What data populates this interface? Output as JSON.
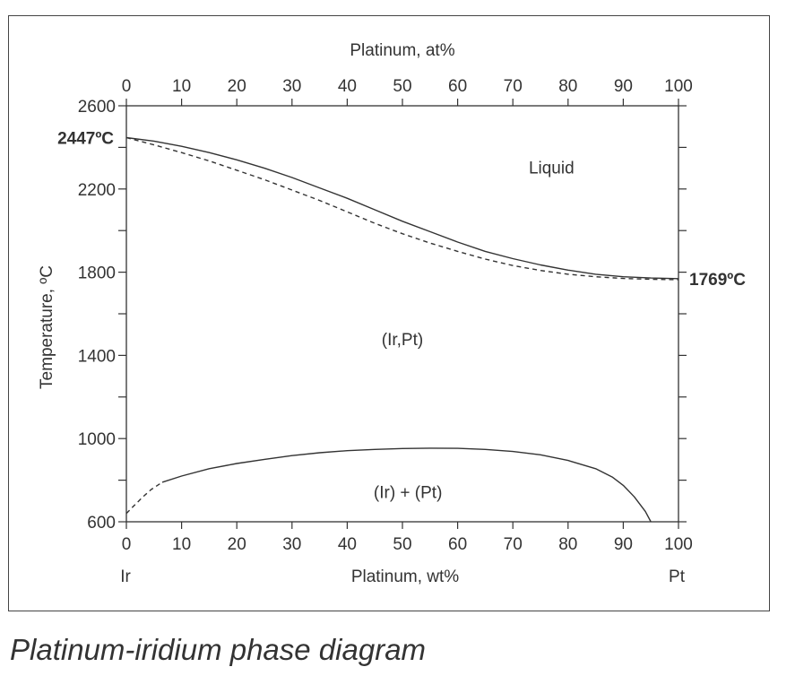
{
  "chart_data": {
    "type": "line",
    "xlabel_bottom": "Platinum, wt%",
    "xlabel_top": "Platinum, at%",
    "ylabel": "Temperature, ºC",
    "xlim": [
      0,
      100
    ],
    "ylim": [
      600,
      2600
    ],
    "x_ticks": [
      "0",
      "10",
      "20",
      "30",
      "40",
      "50",
      "60",
      "70",
      "80",
      "90",
      "100"
    ],
    "y_ticks": [
      "600",
      "1000",
      "1400",
      "1800",
      "2200",
      "2600"
    ],
    "y_minor_step": 200,
    "x_end_labels": {
      "left": "Ir",
      "right": "Pt"
    },
    "point_labels": [
      {
        "text": "2447ºC",
        "x": 0,
        "y": 2447,
        "side": "left"
      },
      {
        "text": "1769ºC",
        "x": 100,
        "y": 1769,
        "side": "right"
      }
    ],
    "region_labels": [
      {
        "text": "Liquid",
        "x": 77,
        "y": 2305
      },
      {
        "text": "(Ir,Pt)",
        "x": 50,
        "y": 1480
      },
      {
        "text": "(Ir) + (Pt)",
        "x": 51,
        "y": 745
      }
    ],
    "series": [
      {
        "style": "solid",
        "points": [
          [
            0,
            2447
          ],
          [
            5,
            2430
          ],
          [
            10,
            2405
          ],
          [
            15,
            2375
          ],
          [
            20,
            2340
          ],
          [
            25,
            2300
          ],
          [
            30,
            2255
          ],
          [
            35,
            2205
          ],
          [
            40,
            2155
          ],
          [
            45,
            2100
          ],
          [
            50,
            2045
          ],
          [
            55,
            1995
          ],
          [
            60,
            1945
          ],
          [
            65,
            1900
          ],
          [
            70,
            1865
          ],
          [
            75,
            1835
          ],
          [
            80,
            1810
          ],
          [
            85,
            1790
          ],
          [
            90,
            1778
          ],
          [
            95,
            1772
          ],
          [
            100,
            1769
          ]
        ]
      },
      {
        "style": "dashed",
        "points": [
          [
            0,
            2447
          ],
          [
            5,
            2412
          ],
          [
            10,
            2375
          ],
          [
            15,
            2335
          ],
          [
            20,
            2290
          ],
          [
            25,
            2245
          ],
          [
            30,
            2195
          ],
          [
            35,
            2145
          ],
          [
            40,
            2090
          ],
          [
            45,
            2035
          ],
          [
            50,
            1985
          ],
          [
            55,
            1940
          ],
          [
            60,
            1900
          ],
          [
            65,
            1863
          ],
          [
            70,
            1832
          ],
          [
            75,
            1808
          ],
          [
            80,
            1790
          ],
          [
            85,
            1778
          ],
          [
            90,
            1770
          ],
          [
            95,
            1766
          ],
          [
            100,
            1764
          ]
        ]
      },
      {
        "style": "solid",
        "points": [
          [
            6.5,
            790
          ],
          [
            10,
            820
          ],
          [
            15,
            855
          ],
          [
            20,
            880
          ],
          [
            25,
            900
          ],
          [
            30,
            918
          ],
          [
            35,
            932
          ],
          [
            40,
            942
          ],
          [
            45,
            948
          ],
          [
            50,
            952
          ],
          [
            55,
            954
          ],
          [
            60,
            953
          ],
          [
            65,
            948
          ],
          [
            70,
            938
          ],
          [
            75,
            922
          ],
          [
            80,
            895
          ],
          [
            85,
            855
          ],
          [
            88,
            815
          ],
          [
            90,
            775
          ],
          [
            92,
            720
          ],
          [
            94,
            650
          ],
          [
            95,
            600
          ]
        ]
      },
      {
        "style": "dashed",
        "points": [
          [
            0,
            640
          ],
          [
            1.5,
            680
          ],
          [
            3,
            720
          ],
          [
            4.5,
            755
          ],
          [
            6.5,
            790
          ]
        ]
      }
    ]
  },
  "caption": "Platinum-iridium phase diagram"
}
